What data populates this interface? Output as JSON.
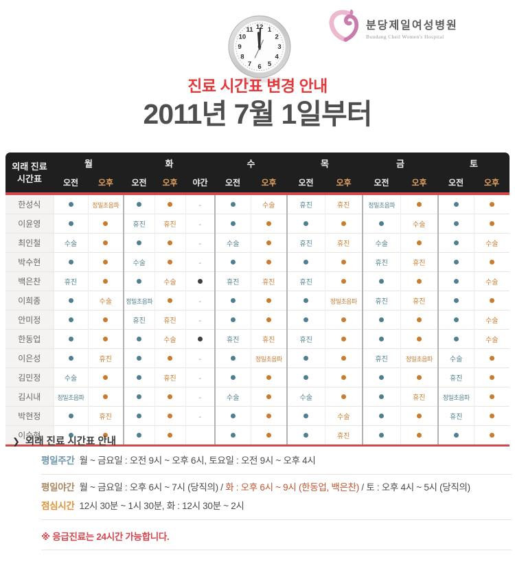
{
  "logo": {
    "hospital_name_ko": "분당제일여성병원",
    "hospital_name_en": "Bundang Cheil Women's Hospital"
  },
  "titles": {
    "notice": "진료 시간표 변경 안내",
    "effective_date": "2011년 7월 1일부터"
  },
  "clock": {
    "numbers": [
      "1",
      "2",
      "3",
      "4",
      "5",
      "6",
      "7",
      "8",
      "9",
      "10",
      "11",
      "12"
    ]
  },
  "colors": {
    "am_dot": "#4f7f8e",
    "pm_dot": "#c87c2f",
    "night_dot": "#3f3f3f",
    "header_bg": "#1f1f1f",
    "red_bar": "#d0494d",
    "title_red": "#e13a3c",
    "highlight_text": "#c05530",
    "note_red": "#d2464e",
    "label_weekday": "#6c94ac",
    "label_night": "#a8875f",
    "label_lunch": "#de9136",
    "logo_pink_light": "#edb9ce",
    "logo_pink_dark": "#c87cab"
  },
  "table": {
    "corner_label_line1": "외래 진료",
    "corner_label_line2": "시간표",
    "day_groups": [
      {
        "label": "월",
        "cols": [
          "오전",
          "오후"
        ]
      },
      {
        "label": "화",
        "cols": [
          "오전",
          "오후",
          "야간"
        ]
      },
      {
        "label": "수",
        "cols": [
          "오전",
          "오후"
        ]
      },
      {
        "label": "목",
        "cols": [
          "오전",
          "오후"
        ]
      },
      {
        "label": "금",
        "cols": [
          "오전",
          "오후"
        ]
      },
      {
        "label": "토",
        "cols": [
          "오전",
          "오후"
        ]
      }
    ],
    "rows": [
      {
        "name": "한성식",
        "cells": [
          "●",
          "정밀초음파",
          "●",
          "●",
          "-",
          "●",
          "수술",
          "휴진",
          "휴진",
          "정밀초음파",
          "●",
          "●",
          "●"
        ]
      },
      {
        "name": "이윤영",
        "cells": [
          "●",
          "●",
          "휴진",
          "휴진",
          "-",
          "●",
          "●",
          "●",
          "●",
          "●",
          "수술",
          "●",
          "●"
        ]
      },
      {
        "name": "최인철",
        "cells": [
          "수술",
          "●",
          "●",
          "●",
          "-",
          "수술",
          "●",
          "휴진",
          "휴진",
          "수술",
          "●",
          "●",
          "수술"
        ]
      },
      {
        "name": "박수현",
        "cells": [
          "●",
          "●",
          "수술",
          "●",
          "-",
          "●",
          "●",
          "●",
          "●",
          "휴진",
          "휴진",
          "●",
          "●"
        ]
      },
      {
        "name": "백은찬",
        "cells": [
          "휴진",
          "●",
          "●",
          "수술",
          "●",
          "휴진",
          "휴진",
          "휴진",
          "●",
          "●",
          "●",
          "●",
          "수술"
        ]
      },
      {
        "name": "이희종",
        "cells": [
          "●",
          "수술",
          "정밀초음파",
          "●",
          "-",
          "●",
          "●",
          "●",
          "정밀초음파",
          "휴진",
          "휴진",
          "●",
          "●"
        ]
      },
      {
        "name": "안미정",
        "cells": [
          "●",
          "●",
          "휴진",
          "휴진",
          "-",
          "●",
          "●",
          "●",
          "●",
          "●",
          "●",
          "●",
          "수술"
        ]
      },
      {
        "name": "한동업",
        "cells": [
          "●",
          "●",
          "●",
          "수술",
          "●",
          "휴진",
          "휴진",
          "휴진",
          "●",
          "●",
          "●",
          "●",
          "수술"
        ]
      },
      {
        "name": "이은성",
        "cells": [
          "●",
          "휴진",
          "●",
          "●",
          "-",
          "●",
          "정밀초음파",
          "●",
          "●",
          "휴진",
          "정밀초음파",
          "수술",
          "●"
        ]
      },
      {
        "name": "김민정",
        "cells": [
          "수술",
          "●",
          "●",
          "휴진",
          "-",
          "●",
          "●",
          "●",
          "●",
          "●",
          "●",
          "휴진",
          "●"
        ]
      },
      {
        "name": "김시내",
        "cells": [
          "정밀초음파",
          "●",
          "●",
          "●",
          "-",
          "수술",
          "●",
          "수술",
          "●",
          "●",
          "휴진",
          "정밀초음파",
          "●"
        ]
      },
      {
        "name": "박현정",
        "cells": [
          "●",
          "휴진",
          "●",
          "●",
          "-",
          "●",
          "●",
          "●",
          "수술",
          "●",
          "●",
          "휴진",
          "●"
        ]
      },
      {
        "name": "이숙현",
        "cells": [
          "●",
          "●",
          "●",
          "●",
          "",
          "●",
          "●",
          "●",
          "휴진",
          "●",
          "●",
          "●",
          "●"
        ]
      }
    ]
  },
  "notice": {
    "arrow": "❯",
    "title": "외래 진료 시간표 안내",
    "lines": [
      {
        "label": "평일주간",
        "label_color": "#6c94ac",
        "divider": true,
        "segments": [
          {
            "text": "월 ~ 금요일 : 오전 9시 ~ 오후 6시, 토요일 : 오전 9시 ~ 오후 4시",
            "highlight": false
          }
        ]
      },
      {
        "label": "평일야간",
        "label_color": "#a8875f",
        "divider": false,
        "segments": [
          {
            "text": "월 ~ 금요일 : 오후 6시 ~ 7시 (당직의) / ",
            "highlight": false
          },
          {
            "text": "화 : 오후 6시 ~ 9시 (한동업, 백은찬)",
            "highlight": true
          },
          {
            "text": " / 토 : 오후 4시 ~ 5시 (당직의)",
            "highlight": false
          }
        ]
      },
      {
        "label": "점심시간",
        "label_color": "#de9136",
        "divider": true,
        "segments": [
          {
            "text": "12시 30분 ~ 1시 30분, 화 : 12시 30분 ~ 2시",
            "highlight": false
          }
        ]
      }
    ],
    "note": "※ 응급진료는 24시간 가능합니다."
  }
}
